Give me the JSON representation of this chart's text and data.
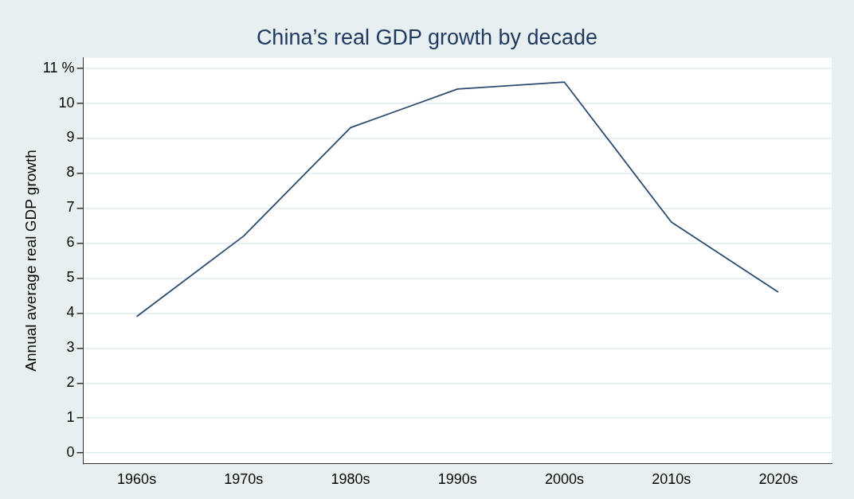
{
  "chart_data": {
    "type": "line",
    "title": "China’s real GDP growth by decade",
    "ylabel": "Annual average real GDP growth",
    "categories": [
      "1960s",
      "1970s",
      "1980s",
      "1990s",
      "2000s",
      "2010s",
      "2020s"
    ],
    "series": [
      {
        "color": "#2b4c6f",
        "values": [
          3.9,
          6.2,
          9.3,
          10.4,
          10.6,
          6.6,
          4.6
        ]
      }
    ],
    "ylim": [
      -0.3,
      11.3
    ],
    "yticks": [
      0,
      1,
      2,
      3,
      4,
      5,
      6,
      7,
      8,
      9,
      10,
      {
        "value": 11,
        "label": "11 %"
      }
    ],
    "grid": "y",
    "legend": false,
    "marker": "none",
    "line_style": "solid"
  }
}
